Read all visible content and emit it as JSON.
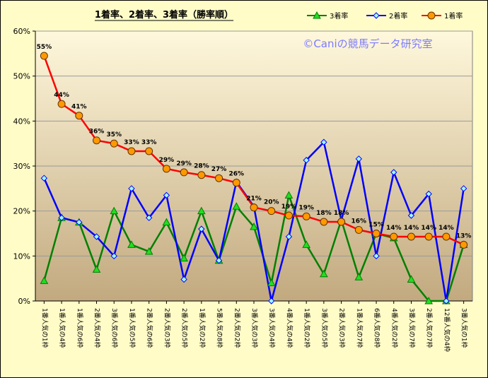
{
  "chart_data": {
    "type": "line",
    "title": "1着率、2着率、3着率（勝率順）",
    "watermark": "©Caniの競馬データ研究室",
    "xlabel": "",
    "ylabel": "",
    "ylim": [
      0,
      60
    ],
    "y_ticks": [
      "0%",
      "10%",
      "20%",
      "30%",
      "40%",
      "50%",
      "60%"
    ],
    "grid": true,
    "legend_position": "top-right",
    "categories": [
      "1番人気の1枠",
      "1番人気の4枠",
      "1番人気の6枠",
      "2番人気の4枠",
      "3番人気の6枠",
      "1番人気の5枠",
      "2番人気の6枠",
      "2番人気の3枠",
      "2番人気の5枠",
      "1番人気の2枠",
      "5番人気の8枠",
      "2番人気の2枠",
      "3番人気の3枠",
      "3番人気の4枠",
      "4番人気の4枠",
      "1番人気の2枠",
      "3番人気の5枠",
      "2番人気の3枠",
      "1番人気の7枠",
      "6番人気の8枠",
      "4番人気の2枠",
      "3番人気の7枠",
      "2番人気の7枠",
      "12番人気の4枠",
      "3番人気の1枠"
    ],
    "series": [
      {
        "name": "3着率",
        "color": "#008000",
        "marker": "triangle",
        "values": [
          4.5,
          18.5,
          17.5,
          7,
          20,
          12.5,
          11,
          17.5,
          9.5,
          20,
          9,
          21,
          16.5,
          4,
          23.5,
          12.5,
          6,
          18,
          5.3,
          15,
          14,
          4.8,
          0,
          0,
          12.5
        ]
      },
      {
        "name": "2着率",
        "color": "#0000ff",
        "marker": "diamond",
        "values": [
          27.3,
          18.5,
          17.5,
          14.3,
          10,
          25,
          18.5,
          23.5,
          4.8,
          16,
          9,
          26.5,
          21,
          0,
          14.3,
          31.3,
          35.3,
          18,
          31.6,
          10,
          28.6,
          19,
          23.8,
          0,
          25
        ]
      },
      {
        "name": "1着率",
        "color": "#ff0000",
        "marker": "circle",
        "marker_fill": "#ff9900",
        "values": [
          54.5,
          43.8,
          41.2,
          35.7,
          35,
          33.3,
          33.3,
          29.4,
          28.6,
          28,
          27.3,
          26.3,
          20.8,
          20,
          19,
          18.8,
          17.6,
          17.6,
          15.8,
          15,
          14.3,
          14.3,
          14.3,
          14.3,
          12.5
        ],
        "data_labels": [
          "55%",
          "44%",
          "41%",
          "36%",
          "35%",
          "33%",
          "33%",
          "29%",
          "29%",
          "28%",
          "27%",
          "26%",
          "21%",
          "20%",
          "19%",
          "19%",
          "18%",
          "18%",
          "16%",
          "15%",
          "14%",
          "14%",
          "14%",
          "14%",
          "13%"
        ]
      }
    ]
  }
}
